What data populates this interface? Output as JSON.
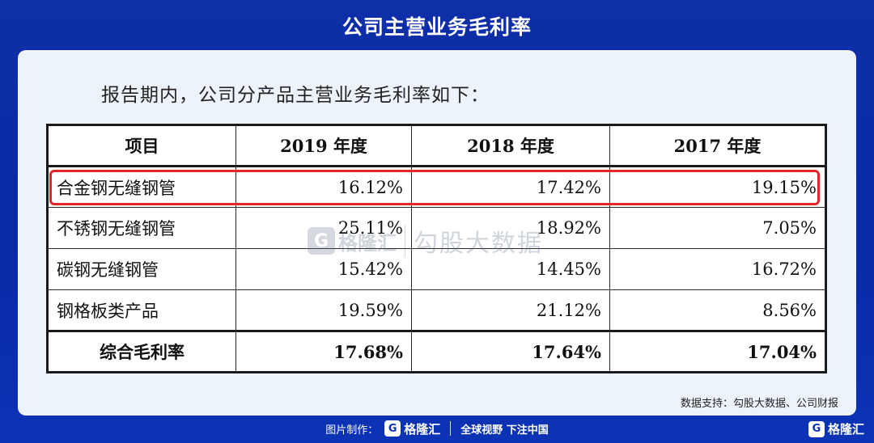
{
  "header": {
    "title": "公司主营业务毛利率"
  },
  "intro": "报告期内，公司分产品主营业务毛利率如下：",
  "table": {
    "headers": [
      "项目",
      "2019 年度",
      "2018 年度",
      "2017 年度"
    ],
    "rows": [
      {
        "label": "合金钢无缝钢管",
        "y2019": "16.12%",
        "y2018": "17.42%",
        "y2017": "19.15%"
      },
      {
        "label": "不锈钢无缝钢管",
        "y2019": "25.11%",
        "y2018": "18.92%",
        "y2017": "7.05%"
      },
      {
        "label": "碳钢无缝钢管",
        "y2019": "15.42%",
        "y2018": "14.45%",
        "y2017": "16.72%"
      },
      {
        "label": "钢格板类产品",
        "y2019": "19.59%",
        "y2018": "21.12%",
        "y2017": "8.56%"
      }
    ],
    "total": {
      "label": "综合毛利率",
      "y2019": "17.68%",
      "y2018": "17.64%",
      "y2017": "17.04%"
    }
  },
  "watermark": {
    "logo_letter": "G",
    "brand": "格隆汇",
    "text": "勾股大数据"
  },
  "source": "数据支持：勾股大数据、公司财报",
  "footer": {
    "made_by": "图片制作：",
    "logo_letter": "G",
    "brand": "格隆汇",
    "slogan": "全球视野 下注中国"
  },
  "corner": {
    "logo_letter": "G",
    "brand": "格隆汇"
  },
  "colors": {
    "background": "#0b33b5",
    "card": "#edf3fb",
    "highlight": "#e8242b"
  }
}
